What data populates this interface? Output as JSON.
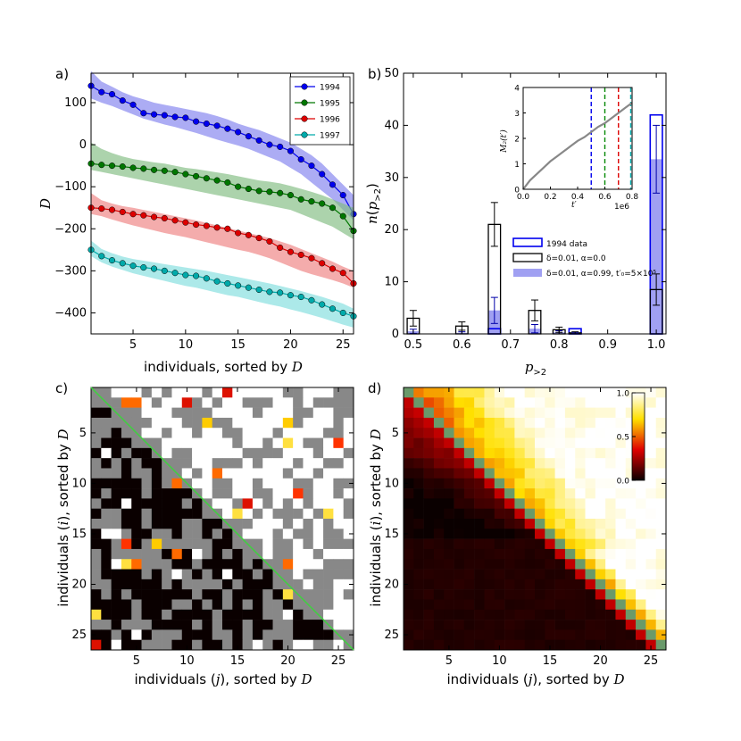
{
  "chart_data": [
    {
      "id": "a",
      "panel_label": "a)",
      "type": "line",
      "xlabel_text": "individuals, sorted by ",
      "xlabel_var": "D",
      "ylabel_var": "D",
      "xlim": [
        1,
        26
      ],
      "ylim": [
        -450,
        170
      ],
      "xticks": [
        5,
        10,
        15,
        20,
        25
      ],
      "yticks": [
        100,
        0,
        -100,
        -200,
        -300,
        -400
      ],
      "ytick_labels": [
        "100",
        "0",
        "−100",
        "−200",
        "−300",
        "−400"
      ],
      "series": [
        {
          "name": "1994",
          "color": "#0000ee",
          "band": "#8080ee",
          "values": [
            140,
            125,
            120,
            105,
            95,
            75,
            72,
            70,
            66,
            64,
            55,
            50,
            45,
            38,
            30,
            20,
            10,
            0,
            -5,
            -15,
            -35,
            -50,
            -70,
            -95,
            -120,
            -165
          ],
          "band_lo": [
            110,
            100,
            92,
            82,
            72,
            62,
            55,
            48,
            42,
            35,
            28,
            20,
            12,
            5,
            -2,
            -10,
            -20,
            -30,
            -40,
            -55,
            -70,
            -90,
            -110,
            -130,
            -155,
            -180
          ],
          "band_hi": [
            175,
            150,
            138,
            125,
            115,
            108,
            100,
            95,
            90,
            85,
            80,
            75,
            68,
            60,
            50,
            42,
            35,
            25,
            15,
            5,
            -10,
            -25,
            -45,
            -70,
            -95,
            -120
          ]
        },
        {
          "name": "1995",
          "color": "#007700",
          "band": "#80bb80",
          "values": [
            -45,
            -48,
            -50,
            -52,
            -55,
            -57,
            -60,
            -62,
            -65,
            -70,
            -75,
            -80,
            -85,
            -90,
            -100,
            -105,
            -110,
            -112,
            -115,
            -120,
            -130,
            -135,
            -140,
            -150,
            -170,
            -205
          ],
          "band_lo": [
            -60,
            -65,
            -70,
            -75,
            -80,
            -85,
            -90,
            -95,
            -100,
            -105,
            -110,
            -115,
            -120,
            -125,
            -130,
            -135,
            -140,
            -145,
            -150,
            -155,
            -165,
            -175,
            -185,
            -195,
            -210,
            -225
          ],
          "band_hi": [
            5,
            -10,
            -20,
            -28,
            -34,
            -38,
            -42,
            -45,
            -50,
            -55,
            -58,
            -62,
            -66,
            -70,
            -75,
            -80,
            -85,
            -88,
            -92,
            -98,
            -105,
            -112,
            -120,
            -130,
            -140,
            -150
          ]
        },
        {
          "name": "1996",
          "color": "#dd0000",
          "band": "#ee8080",
          "values": [
            -150,
            -152,
            -155,
            -160,
            -165,
            -168,
            -172,
            -175,
            -180,
            -185,
            -190,
            -193,
            -197,
            -200,
            -210,
            -215,
            -222,
            -230,
            -245,
            -255,
            -262,
            -270,
            -282,
            -295,
            -305,
            -330
          ],
          "band_lo": [
            -165,
            -170,
            -178,
            -185,
            -192,
            -198,
            -204,
            -210,
            -215,
            -220,
            -226,
            -232,
            -238,
            -244,
            -250,
            -255,
            -262,
            -270,
            -280,
            -290,
            -300,
            -308,
            -315,
            -322,
            -330,
            -340
          ],
          "band_hi": [
            -115,
            -132,
            -140,
            -146,
            -150,
            -155,
            -160,
            -165,
            -170,
            -175,
            -180,
            -186,
            -192,
            -198,
            -204,
            -210,
            -216,
            -222,
            -230,
            -238,
            -248,
            -258,
            -268,
            -278,
            -290,
            -300
          ]
        },
        {
          "name": "1997",
          "color": "#00aaaa",
          "band": "#80dddd",
          "values": [
            -250,
            -265,
            -275,
            -282,
            -288,
            -292,
            -295,
            -300,
            -305,
            -310,
            -312,
            -318,
            -325,
            -330,
            -335,
            -340,
            -345,
            -350,
            -352,
            -358,
            -362,
            -370,
            -380,
            -390,
            -400,
            -408
          ],
          "band_lo": [
            -265,
            -280,
            -290,
            -298,
            -306,
            -312,
            -318,
            -324,
            -330,
            -336,
            -340,
            -346,
            -352,
            -358,
            -362,
            -368,
            -374,
            -380,
            -385,
            -392,
            -398,
            -405,
            -412,
            -420,
            -428,
            -435
          ],
          "band_hi": [
            -228,
            -248,
            -258,
            -266,
            -272,
            -276,
            -280,
            -284,
            -288,
            -292,
            -296,
            -300,
            -305,
            -310,
            -315,
            -320,
            -325,
            -330,
            -336,
            -342,
            -348,
            -355,
            -362,
            -370,
            -378,
            -390
          ]
        }
      ]
    },
    {
      "id": "b",
      "panel_label": "b)",
      "type": "bar",
      "xlabel_var": "p",
      "xlabel_sub": ">2",
      "ylabel_var": "n",
      "ylabel_sub": ">2",
      "xlim": [
        0.48,
        1.02
      ],
      "ylim": [
        0,
        50
      ],
      "xticks": [
        0.5,
        0.6,
        0.7,
        0.8,
        0.9,
        1.0
      ],
      "xtick_labels": [
        "0.5",
        "0.6",
        "0.7",
        "0.8",
        "0.9",
        "1.0"
      ],
      "yticks": [
        0,
        10,
        20,
        30,
        40,
        50
      ],
      "bar_width": 0.025,
      "data_1994": {
        "x": [
          0.667,
          0.833,
          1.0
        ],
        "values": [
          1,
          1,
          42
        ]
      },
      "model_black": {
        "x": [
          0.5,
          0.6,
          0.667,
          0.75,
          0.8,
          0.833,
          1.0
        ],
        "values": [
          3,
          1.5,
          21,
          4.5,
          0.8,
          0.2,
          8.5
        ],
        "err": [
          1.5,
          0.8,
          4.2,
          2.0,
          0.5,
          0.2,
          3.0
        ]
      },
      "model_blue": {
        "x": [
          0.5,
          0.6,
          0.667,
          0.75,
          0.8,
          0.833,
          1.0
        ],
        "values": [
          0.5,
          0.2,
          4.5,
          1.0,
          0.3,
          0.1,
          33.5
        ],
        "err": [
          0.4,
          0.2,
          2.5,
          0.8,
          0.3,
          0.1,
          6.5
        ]
      },
      "legend": {
        "data_1994": "1994 data",
        "black_delta": "δ=0.01, α=0.0",
        "blue_delta": "δ=0.01, α=0.99, t′₀=5×10⁵"
      },
      "inset": {
        "type": "line",
        "xlabel_var": "t′",
        "ylabel_var": "M₂(t′)",
        "xlim": [
          0,
          0.8
        ],
        "ylim": [
          0,
          4
        ],
        "xticks": [
          0.0,
          0.2,
          0.4,
          0.6,
          0.8
        ],
        "xtick_labels": [
          "0.0",
          "0.2",
          "0.4",
          "0.6",
          "0.8"
        ],
        "yticks": [
          0,
          1,
          2,
          3,
          4
        ],
        "offset_label": "1e6",
        "x": [
          0,
          0.05,
          0.1,
          0.15,
          0.2,
          0.25,
          0.3,
          0.35,
          0.4,
          0.45,
          0.5,
          0.55,
          0.6,
          0.65,
          0.7,
          0.75,
          0.8
        ],
        "y": [
          0,
          0.35,
          0.6,
          0.85,
          1.1,
          1.3,
          1.5,
          1.7,
          1.9,
          2.05,
          2.25,
          2.45,
          2.6,
          2.8,
          3.0,
          3.2,
          3.4
        ],
        "vlines": [
          {
            "x": 0.5,
            "color": "#0000ee"
          },
          {
            "x": 0.6,
            "color": "#008800"
          },
          {
            "x": 0.7,
            "color": "#dd0000"
          },
          {
            "x": 0.79,
            "color": "#00aaaa"
          }
        ]
      }
    },
    {
      "id": "c",
      "panel_label": "c)",
      "type": "heatmap",
      "xlabel_text": "individuals (",
      "xlabel_var": "j",
      "xlabel_tail": "), sorted by ",
      "xlabel_var2": "D",
      "ylabel_text": "individuals (",
      "ylabel_var": "i",
      "ylabel_tail": "), sorted by ",
      "ylabel_var2": "D",
      "xticks": [
        5,
        10,
        15,
        20,
        25
      ],
      "yticks": [
        5,
        10,
        15,
        20,
        25
      ],
      "size": 26,
      "diagonal_color": "#44cc44"
    },
    {
      "id": "d",
      "panel_label": "d)",
      "type": "heatmap",
      "xlabel_text": "individuals (",
      "xlabel_var": "j",
      "xlabel_tail": "), sorted by ",
      "xlabel_var2": "D",
      "ylabel_text": "individuals (",
      "ylabel_var": "i",
      "ylabel_tail": "), sorted by ",
      "ylabel_var2": "D",
      "xticks": [
        5,
        10,
        15,
        20,
        25
      ],
      "yticks": [
        5,
        10,
        15,
        20,
        25
      ],
      "size": 26,
      "colorbar_ticks": [
        1.0,
        0.5,
        0.0
      ],
      "colorbar_labels": [
        "1.0",
        "0.5",
        "0.0"
      ]
    }
  ]
}
